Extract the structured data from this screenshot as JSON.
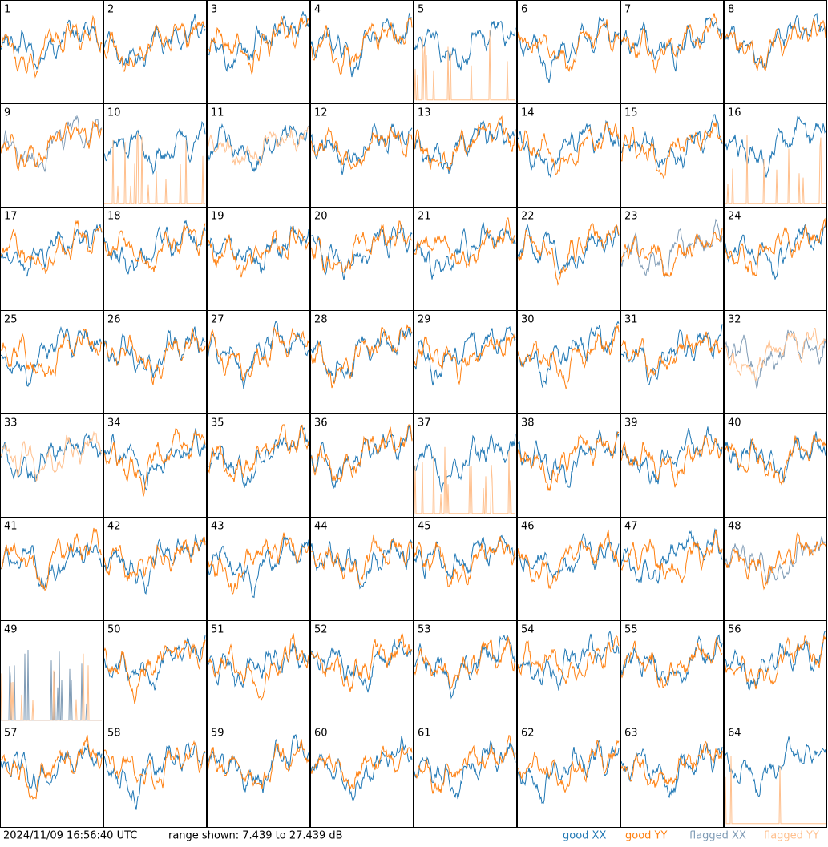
{
  "panels": [
    {
      "label": "1",
      "xx": "good",
      "yy": "good"
    },
    {
      "label": "2",
      "xx": "good",
      "yy": "good"
    },
    {
      "label": "3",
      "xx": "good",
      "yy": "good"
    },
    {
      "label": "4",
      "xx": "good",
      "yy": "good"
    },
    {
      "label": "5",
      "xx": "good",
      "yy": "flagged"
    },
    {
      "label": "6",
      "xx": "good",
      "yy": "good"
    },
    {
      "label": "7",
      "xx": "good",
      "yy": "good"
    },
    {
      "label": "8",
      "xx": "good",
      "yy": "good"
    },
    {
      "label": "9",
      "xx": "flagged",
      "yy": "good"
    },
    {
      "label": "10",
      "xx": "good",
      "yy": "flagged"
    },
    {
      "label": "11",
      "xx": "good",
      "yy": "flagged"
    },
    {
      "label": "12",
      "xx": "good",
      "yy": "good"
    },
    {
      "label": "13",
      "xx": "good",
      "yy": "good"
    },
    {
      "label": "14",
      "xx": "good",
      "yy": "good"
    },
    {
      "label": "15",
      "xx": "good",
      "yy": "good"
    },
    {
      "label": "16",
      "xx": "good",
      "yy": "flagged"
    },
    {
      "label": "17",
      "xx": "good",
      "yy": "good"
    },
    {
      "label": "18",
      "xx": "good",
      "yy": "good"
    },
    {
      "label": "19",
      "xx": "good",
      "yy": "good"
    },
    {
      "label": "20",
      "xx": "good",
      "yy": "good"
    },
    {
      "label": "21",
      "xx": "good",
      "yy": "good"
    },
    {
      "label": "22",
      "xx": "good",
      "yy": "good"
    },
    {
      "label": "23",
      "xx": "flagged",
      "yy": "good"
    },
    {
      "label": "24",
      "xx": "good",
      "yy": "good"
    },
    {
      "label": "25",
      "xx": "good",
      "yy": "good"
    },
    {
      "label": "26",
      "xx": "good",
      "yy": "good"
    },
    {
      "label": "27",
      "xx": "good",
      "yy": "good"
    },
    {
      "label": "28",
      "xx": "good",
      "yy": "good"
    },
    {
      "label": "29",
      "xx": "good",
      "yy": "good"
    },
    {
      "label": "30",
      "xx": "good",
      "yy": "good"
    },
    {
      "label": "31",
      "xx": "good",
      "yy": "good"
    },
    {
      "label": "32",
      "xx": "flagged",
      "yy": "flagged"
    },
    {
      "label": "33",
      "xx": "good",
      "yy": "flagged"
    },
    {
      "label": "34",
      "xx": "good",
      "yy": "good"
    },
    {
      "label": "35",
      "xx": "good",
      "yy": "good"
    },
    {
      "label": "36",
      "xx": "good",
      "yy": "good"
    },
    {
      "label": "37",
      "xx": "good",
      "yy": "flagged"
    },
    {
      "label": "38",
      "xx": "good",
      "yy": "good"
    },
    {
      "label": "39",
      "xx": "good",
      "yy": "good"
    },
    {
      "label": "40",
      "xx": "good",
      "yy": "good"
    },
    {
      "label": "41",
      "xx": "good",
      "yy": "good"
    },
    {
      "label": "42",
      "xx": "good",
      "yy": "good"
    },
    {
      "label": "43",
      "xx": "good",
      "yy": "good"
    },
    {
      "label": "44",
      "xx": "good",
      "yy": "good"
    },
    {
      "label": "45",
      "xx": "good",
      "yy": "good"
    },
    {
      "label": "46",
      "xx": "good",
      "yy": "good"
    },
    {
      "label": "47",
      "xx": "good",
      "yy": "good"
    },
    {
      "label": "48",
      "xx": "flagged",
      "yy": "good"
    },
    {
      "label": "49",
      "xx": "flagged",
      "yy": "flagged"
    },
    {
      "label": "50",
      "xx": "good",
      "yy": "good"
    },
    {
      "label": "51",
      "xx": "good",
      "yy": "good"
    },
    {
      "label": "52",
      "xx": "good",
      "yy": "good"
    },
    {
      "label": "53",
      "xx": "good",
      "yy": "good"
    },
    {
      "label": "54",
      "xx": "good",
      "yy": "good"
    },
    {
      "label": "55",
      "xx": "good",
      "yy": "good"
    },
    {
      "label": "56",
      "xx": "good",
      "yy": "good"
    },
    {
      "label": "57",
      "xx": "good",
      "yy": "good"
    },
    {
      "label": "58",
      "xx": "good",
      "yy": "good"
    },
    {
      "label": "59",
      "xx": "good",
      "yy": "good"
    },
    {
      "label": "60",
      "xx": "good",
      "yy": "good"
    },
    {
      "label": "61",
      "xx": "good",
      "yy": "good"
    },
    {
      "label": "62",
      "xx": "good",
      "yy": "good"
    },
    {
      "label": "63",
      "xx": "good",
      "yy": "good"
    },
    {
      "label": "64",
      "xx": "good",
      "yy": "flagged"
    }
  ],
  "footer": {
    "timestamp": "2024/11/09 16:56:40 UTC",
    "range": "range shown: 7.439 to 27.439 dB"
  },
  "legend": [
    {
      "label": "good XX",
      "color": "#1f77b4"
    },
    {
      "label": "good YY",
      "color": "#ff7f0e"
    },
    {
      "label": "flagged XX",
      "color": "#7f9bb5"
    },
    {
      "label": "flagged YY",
      "color": "#ffc08e"
    }
  ]
}
